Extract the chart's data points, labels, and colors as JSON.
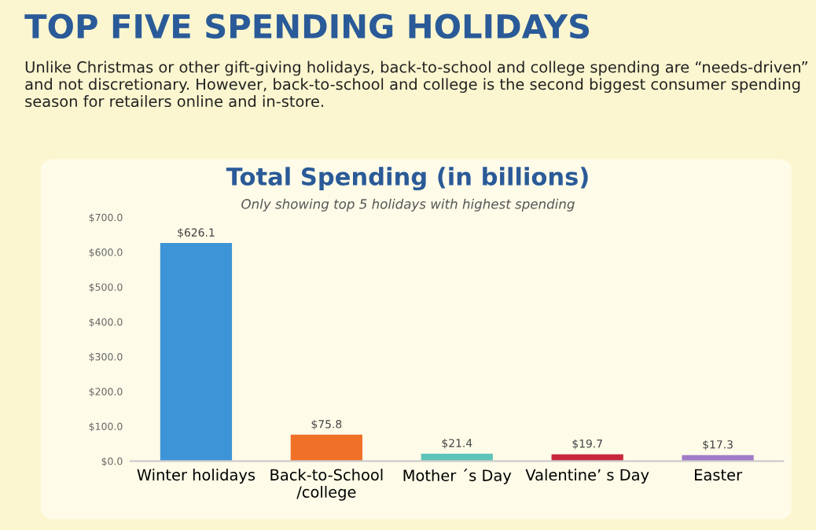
{
  "chart_data": {
    "type": "bar",
    "title": "Total Spending (in billions)",
    "subtitle": "Only showing top 5 holidays with highest spending",
    "annotations": [
      "TOP FIVE SPENDING HOLIDAYS",
      "Unlike Christmas or other gift-giving holidays, back-to-school and college spending are “needs-driven” and not discretionary. However, back-to-school and college is the second biggest consumer spending season for retailers online and in-store."
    ],
    "categories": [
      "Winter holidays",
      "Back-to-School\n/college",
      "Mother ´s Day",
      "Valentine’ s Day",
      "Easter"
    ],
    "values": [
      626.1,
      75.8,
      21.4,
      19.7,
      17.3
    ],
    "colors": [
      "#3d94d6",
      "#f07028",
      "#5cc4b8",
      "#c8283c",
      "#a07cc8"
    ],
    "value_labels": [
      "$626.1",
      "$75.8",
      "$21.4",
      "$19.7",
      "$17.3"
    ],
    "ylim": [
      0,
      700
    ],
    "yticks": [
      {
        "value": 0,
        "label": "$0.0"
      },
      {
        "value": 100,
        "label": "$100.0"
      },
      {
        "value": 200,
        "label": "$200.0"
      },
      {
        "value": 300,
        "label": "$300.0"
      },
      {
        "value": 400,
        "label": "$400.0"
      },
      {
        "value": 500,
        "label": "$500.0"
      },
      {
        "value": 600,
        "label": "$600.0"
      },
      {
        "value": 700,
        "label": "$700.0"
      }
    ],
    "grid": false,
    "legend": false
  }
}
